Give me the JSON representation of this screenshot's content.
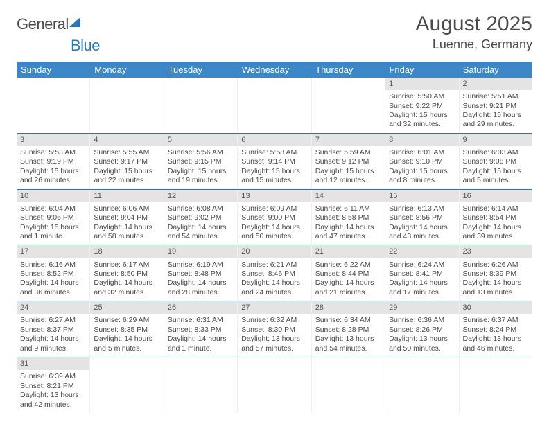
{
  "logo": {
    "part1": "General",
    "part2": "Blue"
  },
  "title": "August 2025",
  "location": "Luenne, Germany",
  "colors": {
    "header_bg": "#3c87c7",
    "accent": "#2976b8",
    "daynum_bg": "#e4e4e4",
    "text": "#4a4a4a"
  },
  "dow": [
    "Sunday",
    "Monday",
    "Tuesday",
    "Wednesday",
    "Thursday",
    "Friday",
    "Saturday"
  ],
  "weeks": [
    [
      null,
      null,
      null,
      null,
      null,
      {
        "n": "1",
        "sr": "Sunrise: 5:50 AM",
        "ss": "Sunset: 9:22 PM",
        "dl": "Daylight: 15 hours and 32 minutes."
      },
      {
        "n": "2",
        "sr": "Sunrise: 5:51 AM",
        "ss": "Sunset: 9:21 PM",
        "dl": "Daylight: 15 hours and 29 minutes."
      }
    ],
    [
      {
        "n": "3",
        "sr": "Sunrise: 5:53 AM",
        "ss": "Sunset: 9:19 PM",
        "dl": "Daylight: 15 hours and 26 minutes."
      },
      {
        "n": "4",
        "sr": "Sunrise: 5:55 AM",
        "ss": "Sunset: 9:17 PM",
        "dl": "Daylight: 15 hours and 22 minutes."
      },
      {
        "n": "5",
        "sr": "Sunrise: 5:56 AM",
        "ss": "Sunset: 9:15 PM",
        "dl": "Daylight: 15 hours and 19 minutes."
      },
      {
        "n": "6",
        "sr": "Sunrise: 5:58 AM",
        "ss": "Sunset: 9:14 PM",
        "dl": "Daylight: 15 hours and 15 minutes."
      },
      {
        "n": "7",
        "sr": "Sunrise: 5:59 AM",
        "ss": "Sunset: 9:12 PM",
        "dl": "Daylight: 15 hours and 12 minutes."
      },
      {
        "n": "8",
        "sr": "Sunrise: 6:01 AM",
        "ss": "Sunset: 9:10 PM",
        "dl": "Daylight: 15 hours and 8 minutes."
      },
      {
        "n": "9",
        "sr": "Sunrise: 6:03 AM",
        "ss": "Sunset: 9:08 PM",
        "dl": "Daylight: 15 hours and 5 minutes."
      }
    ],
    [
      {
        "n": "10",
        "sr": "Sunrise: 6:04 AM",
        "ss": "Sunset: 9:06 PM",
        "dl": "Daylight: 15 hours and 1 minute."
      },
      {
        "n": "11",
        "sr": "Sunrise: 6:06 AM",
        "ss": "Sunset: 9:04 PM",
        "dl": "Daylight: 14 hours and 58 minutes."
      },
      {
        "n": "12",
        "sr": "Sunrise: 6:08 AM",
        "ss": "Sunset: 9:02 PM",
        "dl": "Daylight: 14 hours and 54 minutes."
      },
      {
        "n": "13",
        "sr": "Sunrise: 6:09 AM",
        "ss": "Sunset: 9:00 PM",
        "dl": "Daylight: 14 hours and 50 minutes."
      },
      {
        "n": "14",
        "sr": "Sunrise: 6:11 AM",
        "ss": "Sunset: 8:58 PM",
        "dl": "Daylight: 14 hours and 47 minutes."
      },
      {
        "n": "15",
        "sr": "Sunrise: 6:13 AM",
        "ss": "Sunset: 8:56 PM",
        "dl": "Daylight: 14 hours and 43 minutes."
      },
      {
        "n": "16",
        "sr": "Sunrise: 6:14 AM",
        "ss": "Sunset: 8:54 PM",
        "dl": "Daylight: 14 hours and 39 minutes."
      }
    ],
    [
      {
        "n": "17",
        "sr": "Sunrise: 6:16 AM",
        "ss": "Sunset: 8:52 PM",
        "dl": "Daylight: 14 hours and 36 minutes."
      },
      {
        "n": "18",
        "sr": "Sunrise: 6:17 AM",
        "ss": "Sunset: 8:50 PM",
        "dl": "Daylight: 14 hours and 32 minutes."
      },
      {
        "n": "19",
        "sr": "Sunrise: 6:19 AM",
        "ss": "Sunset: 8:48 PM",
        "dl": "Daylight: 14 hours and 28 minutes."
      },
      {
        "n": "20",
        "sr": "Sunrise: 6:21 AM",
        "ss": "Sunset: 8:46 PM",
        "dl": "Daylight: 14 hours and 24 minutes."
      },
      {
        "n": "21",
        "sr": "Sunrise: 6:22 AM",
        "ss": "Sunset: 8:44 PM",
        "dl": "Daylight: 14 hours and 21 minutes."
      },
      {
        "n": "22",
        "sr": "Sunrise: 6:24 AM",
        "ss": "Sunset: 8:41 PM",
        "dl": "Daylight: 14 hours and 17 minutes."
      },
      {
        "n": "23",
        "sr": "Sunrise: 6:26 AM",
        "ss": "Sunset: 8:39 PM",
        "dl": "Daylight: 14 hours and 13 minutes."
      }
    ],
    [
      {
        "n": "24",
        "sr": "Sunrise: 6:27 AM",
        "ss": "Sunset: 8:37 PM",
        "dl": "Daylight: 14 hours and 9 minutes."
      },
      {
        "n": "25",
        "sr": "Sunrise: 6:29 AM",
        "ss": "Sunset: 8:35 PM",
        "dl": "Daylight: 14 hours and 5 minutes."
      },
      {
        "n": "26",
        "sr": "Sunrise: 6:31 AM",
        "ss": "Sunset: 8:33 PM",
        "dl": "Daylight: 14 hours and 1 minute."
      },
      {
        "n": "27",
        "sr": "Sunrise: 6:32 AM",
        "ss": "Sunset: 8:30 PM",
        "dl": "Daylight: 13 hours and 57 minutes."
      },
      {
        "n": "28",
        "sr": "Sunrise: 6:34 AM",
        "ss": "Sunset: 8:28 PM",
        "dl": "Daylight: 13 hours and 54 minutes."
      },
      {
        "n": "29",
        "sr": "Sunrise: 6:36 AM",
        "ss": "Sunset: 8:26 PM",
        "dl": "Daylight: 13 hours and 50 minutes."
      },
      {
        "n": "30",
        "sr": "Sunrise: 6:37 AM",
        "ss": "Sunset: 8:24 PM",
        "dl": "Daylight: 13 hours and 46 minutes."
      }
    ],
    [
      {
        "n": "31",
        "sr": "Sunrise: 6:39 AM",
        "ss": "Sunset: 8:21 PM",
        "dl": "Daylight: 13 hours and 42 minutes."
      },
      null,
      null,
      null,
      null,
      null,
      null
    ]
  ]
}
